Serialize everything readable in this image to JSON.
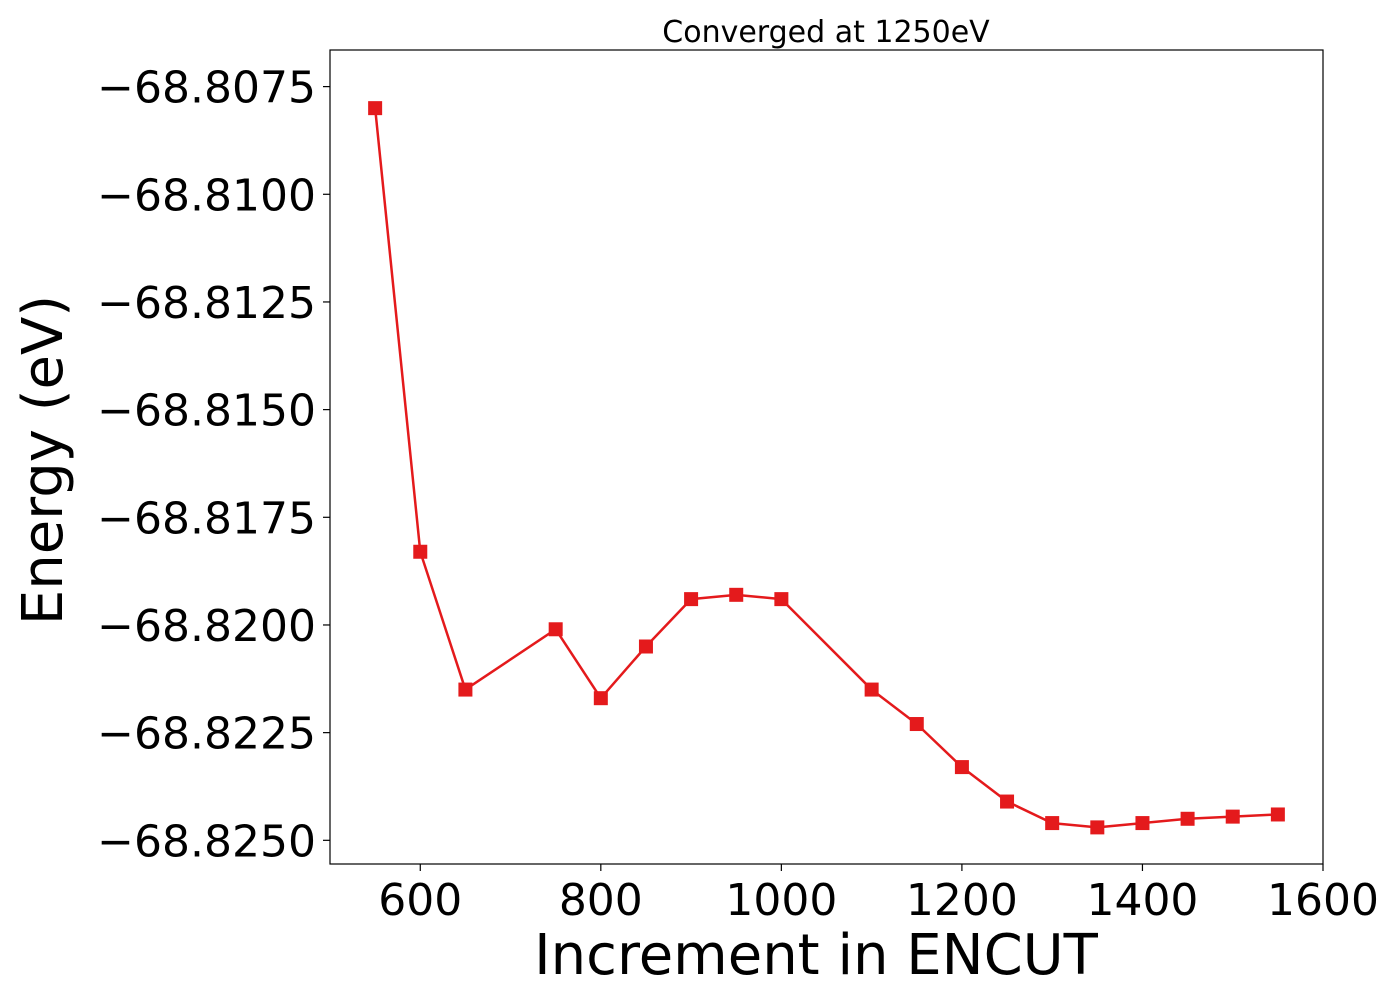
{
  "chart_data": {
    "type": "line",
    "title": "Converged at 1250eV",
    "xlabel": "Increment in ENCUT",
    "ylabel": "Energy (eV)",
    "xlim": [
      500,
      1600
    ],
    "ylim": [
      -68.82555,
      -68.80665
    ],
    "x_ticks": [
      600,
      800,
      1000,
      1200,
      1400,
      1600
    ],
    "x_tick_labels": [
      "600",
      "800",
      "1000",
      "1200",
      "1400",
      "1600"
    ],
    "y_ticks": [
      -68.8075,
      -68.81,
      -68.8125,
      -68.815,
      -68.8175,
      -68.82,
      -68.8225,
      -68.825
    ],
    "y_tick_labels": [
      "−68.8075",
      "−68.8100",
      "−68.8125",
      "−68.8150",
      "−68.8175",
      "−68.8200",
      "−68.8225",
      "−68.8250"
    ],
    "grid": false,
    "series": [
      {
        "color": "#e41a1c",
        "marker": "square",
        "x": [
          550,
          600,
          650,
          750,
          800,
          850,
          900,
          950,
          1000,
          1100,
          1150,
          1200,
          1250,
          1300,
          1350,
          1400,
          1450,
          1500,
          1550
        ],
        "y": [
          -68.808,
          -68.8183,
          -68.8215,
          -68.8201,
          -68.8217,
          -68.8205,
          -68.8194,
          -68.8193,
          -68.8194,
          -68.8215,
          -68.8223,
          -68.8233,
          -68.8241,
          -68.8246,
          -68.8247,
          -68.8246,
          -68.8245,
          -68.82445,
          -68.8244
        ]
      }
    ]
  }
}
